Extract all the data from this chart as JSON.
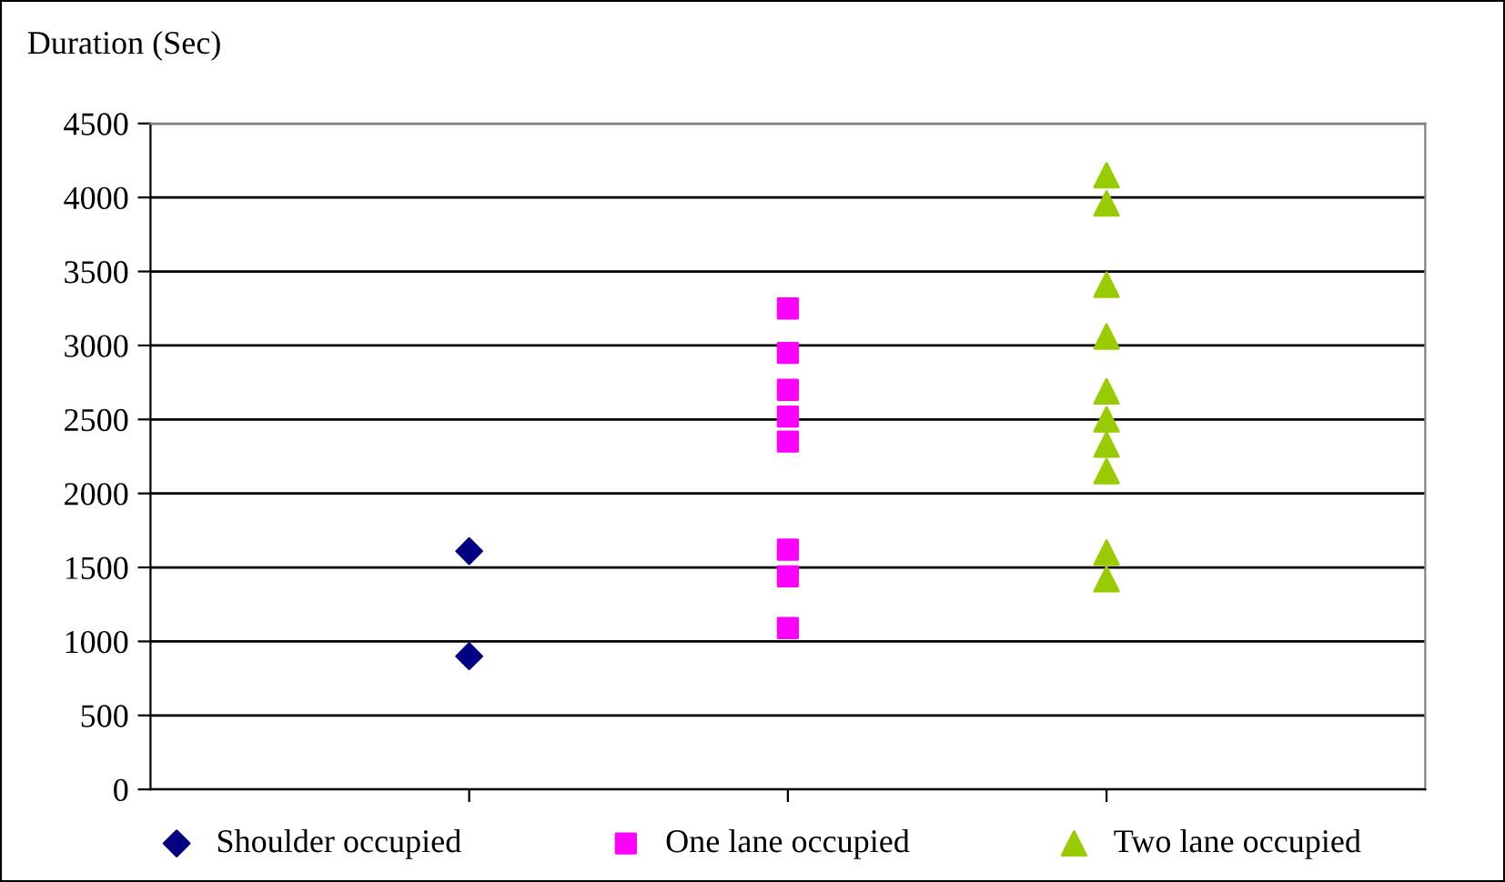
{
  "chart_data": {
    "type": "scatter",
    "ylabel": "Duration (Sec)",
    "categories": [
      null,
      null,
      null
    ],
    "ylim": [
      0,
      4500
    ],
    "yticks": [
      0,
      500,
      1000,
      1500,
      2000,
      2500,
      3000,
      3500,
      4000,
      4500
    ],
    "grid": "y",
    "legend": "bottom",
    "series": [
      {
        "name": "Shoulder occupied",
        "color": "#000080",
        "marker": "diamond",
        "values": [
          1610,
          null,
          null
        ]
      },
      {
        "color": "#000080",
        "marker": "diamond",
        "values": [
          900,
          null,
          null
        ]
      },
      {
        "name": "One lane occupied",
        "color": "#ff00ff",
        "marker": "square",
        "values": [
          null,
          3250,
          null
        ]
      },
      {
        "color": "#ff00ff",
        "marker": "square",
        "values": [
          null,
          2950,
          null
        ]
      },
      {
        "color": "#ff00ff",
        "marker": "square",
        "values": [
          null,
          2700,
          null
        ]
      },
      {
        "color": "#ff00ff",
        "marker": "square",
        "values": [
          null,
          2520,
          null
        ]
      },
      {
        "color": "#ff00ff",
        "marker": "square",
        "values": [
          null,
          2350,
          null
        ]
      },
      {
        "color": "#ff00ff",
        "marker": "square",
        "values": [
          null,
          1620,
          null
        ]
      },
      {
        "color": "#ff00ff",
        "marker": "square",
        "values": [
          null,
          1440,
          null
        ]
      },
      {
        "color": "#ff00ff",
        "marker": "square",
        "values": [
          null,
          1090,
          null
        ]
      },
      {
        "name": "Two lane occupied",
        "color": "#99cc00",
        "marker": "triangle",
        "values": [
          null,
          null,
          4150
        ]
      },
      {
        "color": "#99cc00",
        "marker": "triangle",
        "values": [
          null,
          null,
          3960
        ]
      },
      {
        "color": "#99cc00",
        "marker": "triangle",
        "values": [
          null,
          null,
          3410
        ]
      },
      {
        "color": "#99cc00",
        "marker": "triangle",
        "values": [
          null,
          null,
          3060
        ]
      },
      {
        "color": "#99cc00",
        "marker": "triangle",
        "values": [
          null,
          null,
          2690
        ]
      },
      {
        "color": "#99cc00",
        "marker": "triangle",
        "values": [
          null,
          null,
          2500
        ]
      },
      {
        "color": "#99cc00",
        "marker": "triangle",
        "values": [
          null,
          null,
          2330
        ]
      },
      {
        "color": "#99cc00",
        "marker": "triangle",
        "values": [
          null,
          null,
          2150
        ]
      },
      {
        "color": "#99cc00",
        "marker": "triangle",
        "values": [
          null,
          null,
          1600
        ]
      },
      {
        "color": "#99cc00",
        "marker": "triangle",
        "values": [
          null,
          null,
          1420
        ]
      }
    ]
  }
}
